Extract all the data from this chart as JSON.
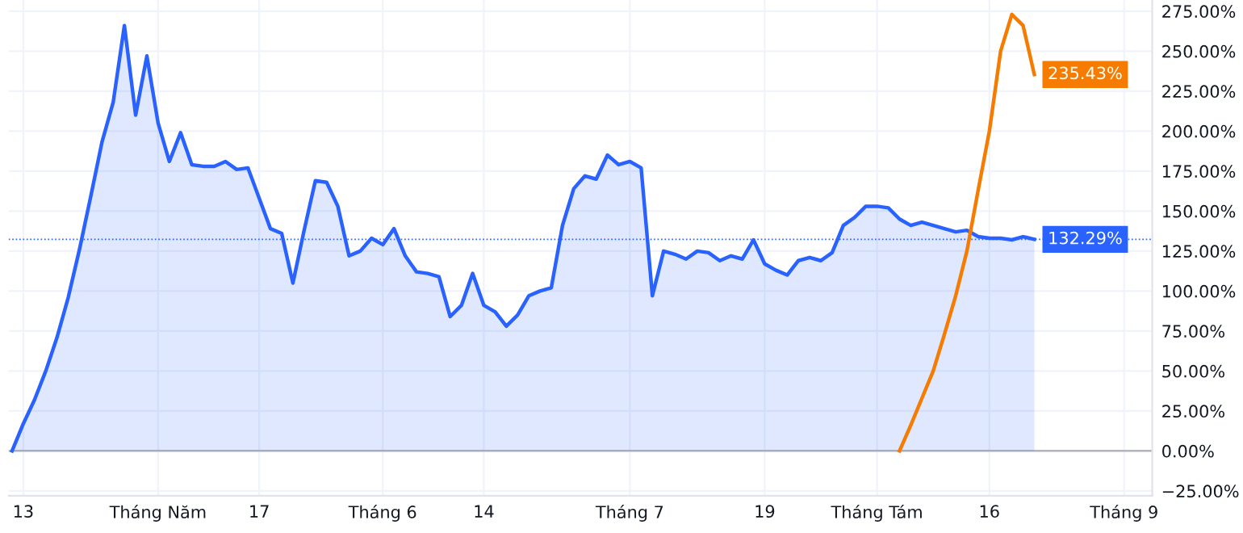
{
  "chart_data": {
    "type": "area",
    "categories": [
      null,
      "13",
      null,
      null,
      null,
      null,
      null,
      null,
      null,
      null,
      null,
      null,
      null,
      "Tháng Năm",
      null,
      null,
      null,
      null,
      null,
      null,
      null,
      null,
      "17",
      null,
      null,
      null,
      null,
      null,
      null,
      null,
      null,
      null,
      null,
      "Tháng 6",
      null,
      null,
      null,
      null,
      null,
      null,
      null,
      null,
      "14",
      null,
      null,
      null,
      null,
      null,
      null,
      null,
      null,
      null,
      null,
      null,
      null,
      "Tháng 7",
      null,
      null,
      null,
      null,
      null,
      null,
      null,
      null,
      null,
      null,
      null,
      "19",
      null,
      null,
      null,
      null,
      null,
      null,
      null,
      null,
      null,
      "Tháng Tám",
      null,
      null,
      null,
      null,
      null,
      null,
      null,
      null,
      null,
      "16",
      null,
      null,
      null,
      null,
      null,
      null,
      null,
      null,
      null,
      null,
      null,
      "Tháng 9",
      null,
      null
    ],
    "series": [
      {
        "color": "#2962ff",
        "values": [
          0,
          17,
          32,
          50,
          71,
          96,
          126,
          159,
          193,
          218,
          266,
          210,
          247,
          205,
          181,
          199,
          179,
          178,
          178,
          181,
          176,
          177,
          158,
          139,
          136,
          105,
          138,
          169,
          168,
          153,
          122,
          125,
          133,
          129,
          139,
          122,
          112,
          111,
          109,
          84,
          91,
          111,
          91,
          87,
          78,
          85,
          97,
          100,
          102,
          141,
          164,
          172,
          170,
          185,
          179,
          181,
          177,
          97,
          125,
          123,
          120,
          125,
          124,
          119,
          122,
          120,
          132,
          117,
          113,
          110,
          119,
          121,
          119,
          124,
          141,
          146,
          153,
          153,
          152,
          145,
          141,
          143,
          141,
          139,
          137,
          138,
          134,
          133,
          133,
          132,
          134,
          132.29,
          null,
          null,
          null,
          null,
          null,
          null,
          null,
          null,
          null,
          null
        ],
        "value_labels": [
          null,
          null,
          null,
          null,
          null,
          null,
          null,
          null,
          null,
          null,
          null,
          null,
          null,
          null,
          null,
          null,
          null,
          null,
          null,
          null,
          null,
          null,
          null,
          null,
          null,
          null,
          null,
          null,
          null,
          null,
          null,
          null,
          null,
          null,
          null,
          null,
          null,
          null,
          null,
          null,
          null,
          null,
          null,
          null,
          null,
          null,
          null,
          null,
          null,
          null,
          null,
          null,
          null,
          null,
          null,
          null,
          null,
          null,
          null,
          null,
          null,
          null,
          null,
          null,
          null,
          null,
          null,
          null,
          null,
          null,
          null,
          null,
          null,
          null,
          null,
          null,
          null,
          null,
          null,
          null,
          null,
          null,
          null,
          null,
          null,
          null,
          null,
          null,
          null,
          null,
          null,
          "132.29%",
          null,
          null,
          null,
          null,
          null,
          null,
          null,
          null,
          null,
          null
        ]
      },
      {
        "type": "line",
        "color": "#f57c00",
        "values": [
          null,
          null,
          null,
          null,
          null,
          null,
          null,
          null,
          null,
          null,
          null,
          null,
          null,
          null,
          null,
          null,
          null,
          null,
          null,
          null,
          null,
          null,
          null,
          null,
          null,
          null,
          null,
          null,
          null,
          null,
          null,
          null,
          null,
          null,
          null,
          null,
          null,
          null,
          null,
          null,
          null,
          null,
          null,
          null,
          null,
          null,
          null,
          null,
          null,
          null,
          null,
          null,
          null,
          null,
          null,
          null,
          null,
          null,
          null,
          null,
          null,
          null,
          null,
          null,
          null,
          null,
          null,
          null,
          null,
          null,
          null,
          null,
          null,
          null,
          null,
          null,
          null,
          null,
          null,
          0,
          16,
          33,
          50,
          73,
          97,
          125,
          163,
          200,
          250,
          273,
          266,
          235.43,
          null,
          null,
          null,
          null,
          null,
          null,
          null,
          null,
          null,
          null
        ],
        "value_labels": [
          null,
          null,
          null,
          null,
          null,
          null,
          null,
          null,
          null,
          null,
          null,
          null,
          null,
          null,
          null,
          null,
          null,
          null,
          null,
          null,
          null,
          null,
          null,
          null,
          null,
          null,
          null,
          null,
          null,
          null,
          null,
          null,
          null,
          null,
          null,
          null,
          null,
          null,
          null,
          null,
          null,
          null,
          null,
          null,
          null,
          null,
          null,
          null,
          null,
          null,
          null,
          null,
          null,
          null,
          null,
          null,
          null,
          null,
          null,
          null,
          null,
          null,
          null,
          null,
          null,
          null,
          null,
          null,
          null,
          null,
          null,
          null,
          null,
          null,
          null,
          null,
          null,
          null,
          null,
          null,
          null,
          null,
          null,
          null,
          null,
          null,
          null,
          null,
          null,
          null,
          null,
          "235.43%",
          null,
          null,
          null,
          null,
          null,
          null,
          null,
          null,
          null,
          null
        ]
      }
    ],
    "ylim": [
      -28,
      282
    ],
    "yticks": [
      {
        "value": -25,
        "label": "−25.00%"
      },
      {
        "value": 0,
        "label": "0.00%"
      },
      {
        "value": 25,
        "label": "25.00%"
      },
      {
        "value": 50,
        "label": "50.00%"
      },
      {
        "value": 75,
        "label": "75.00%"
      },
      {
        "value": 100,
        "label": "100.00%"
      },
      {
        "value": 125,
        "label": "125.00%"
      },
      {
        "value": 150,
        "label": "150.00%"
      },
      {
        "value": 175,
        "label": "175.00%"
      },
      {
        "value": 200,
        "label": "200.00%"
      },
      {
        "value": 225,
        "label": "225.00%"
      },
      {
        "value": 250,
        "label": "250.00%"
      },
      {
        "value": 275,
        "label": "275.00%"
      }
    ],
    "ref_lines": [
      {
        "axis": "y",
        "value": 0,
        "color": "#b2b5be",
        "line_style": "solid"
      },
      {
        "axis": "y",
        "value": 132.29,
        "color": "#2962ff",
        "line_style": "dotted"
      }
    ],
    "grid": true
  }
}
